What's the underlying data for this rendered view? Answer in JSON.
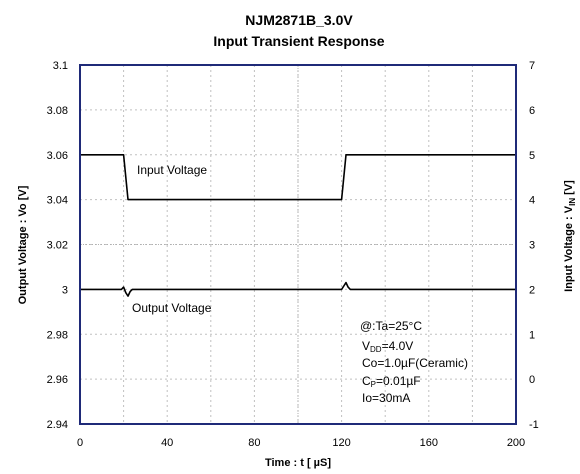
{
  "chart_data": {
    "type": "line",
    "title": "NJM2871B_3.0V",
    "subtitle": "Input Transient Response",
    "xlabel": "Time : t [ µS]",
    "ylabel_left": "Output Voltage : Vo [V]",
    "ylabel_right_main": "Input Voltage : V",
    "ylabel_right_sub": "IN",
    "ylabel_right_unit": " [V]",
    "xlim": [
      0,
      200
    ],
    "ylim_left": [
      2.94,
      3.1
    ],
    "ylim_right": [
      -1,
      7
    ],
    "x_ticks": [
      "0",
      "40",
      "80",
      "120",
      "160",
      "200"
    ],
    "y_left_ticks": [
      "2.94",
      "2.96",
      "2.98",
      "3",
      "3.02",
      "3.04",
      "3.06",
      "3.08",
      "3.1"
    ],
    "y_right_ticks": [
      "-1",
      "0",
      "1",
      "2",
      "3",
      "4",
      "5",
      "6",
      "7"
    ],
    "grid": true,
    "series": [
      {
        "name": "Input Voltage",
        "axis": "right",
        "color": "#000000",
        "x": [
          0,
          20,
          22,
          120,
          122,
          200
        ],
        "y": [
          5,
          5,
          4,
          4,
          5,
          5
        ]
      },
      {
        "name": "Output Voltage",
        "axis": "left",
        "color": "#000000",
        "x": [
          0,
          19,
          20,
          21,
          22,
          23,
          24,
          60,
          100,
          119,
          120,
          121,
          122,
          123,
          124,
          200
        ],
        "y": [
          3.0,
          3.0,
          3.001,
          2.9985,
          2.997,
          2.999,
          3.0,
          3.0,
          3.0,
          3.0,
          3.0,
          3.0015,
          3.003,
          3.001,
          3.0,
          3.0
        ]
      }
    ],
    "annotations": [
      {
        "text": "Input Voltage",
        "series": "Input Voltage"
      },
      {
        "text": "Output Voltage",
        "series": "Output Voltage"
      }
    ],
    "conditions": [
      {
        "main": "@:Ta=25°C",
        "sub": ""
      },
      {
        "main": "V",
        "sub": "DD",
        "rest": "=4.0V"
      },
      {
        "main": "Co=1.0µF(Ceramic)",
        "sub": ""
      },
      {
        "main": "C",
        "sub": "P",
        "rest": "=0.01µF"
      },
      {
        "main": "Io=30mA",
        "sub": ""
      }
    ]
  }
}
